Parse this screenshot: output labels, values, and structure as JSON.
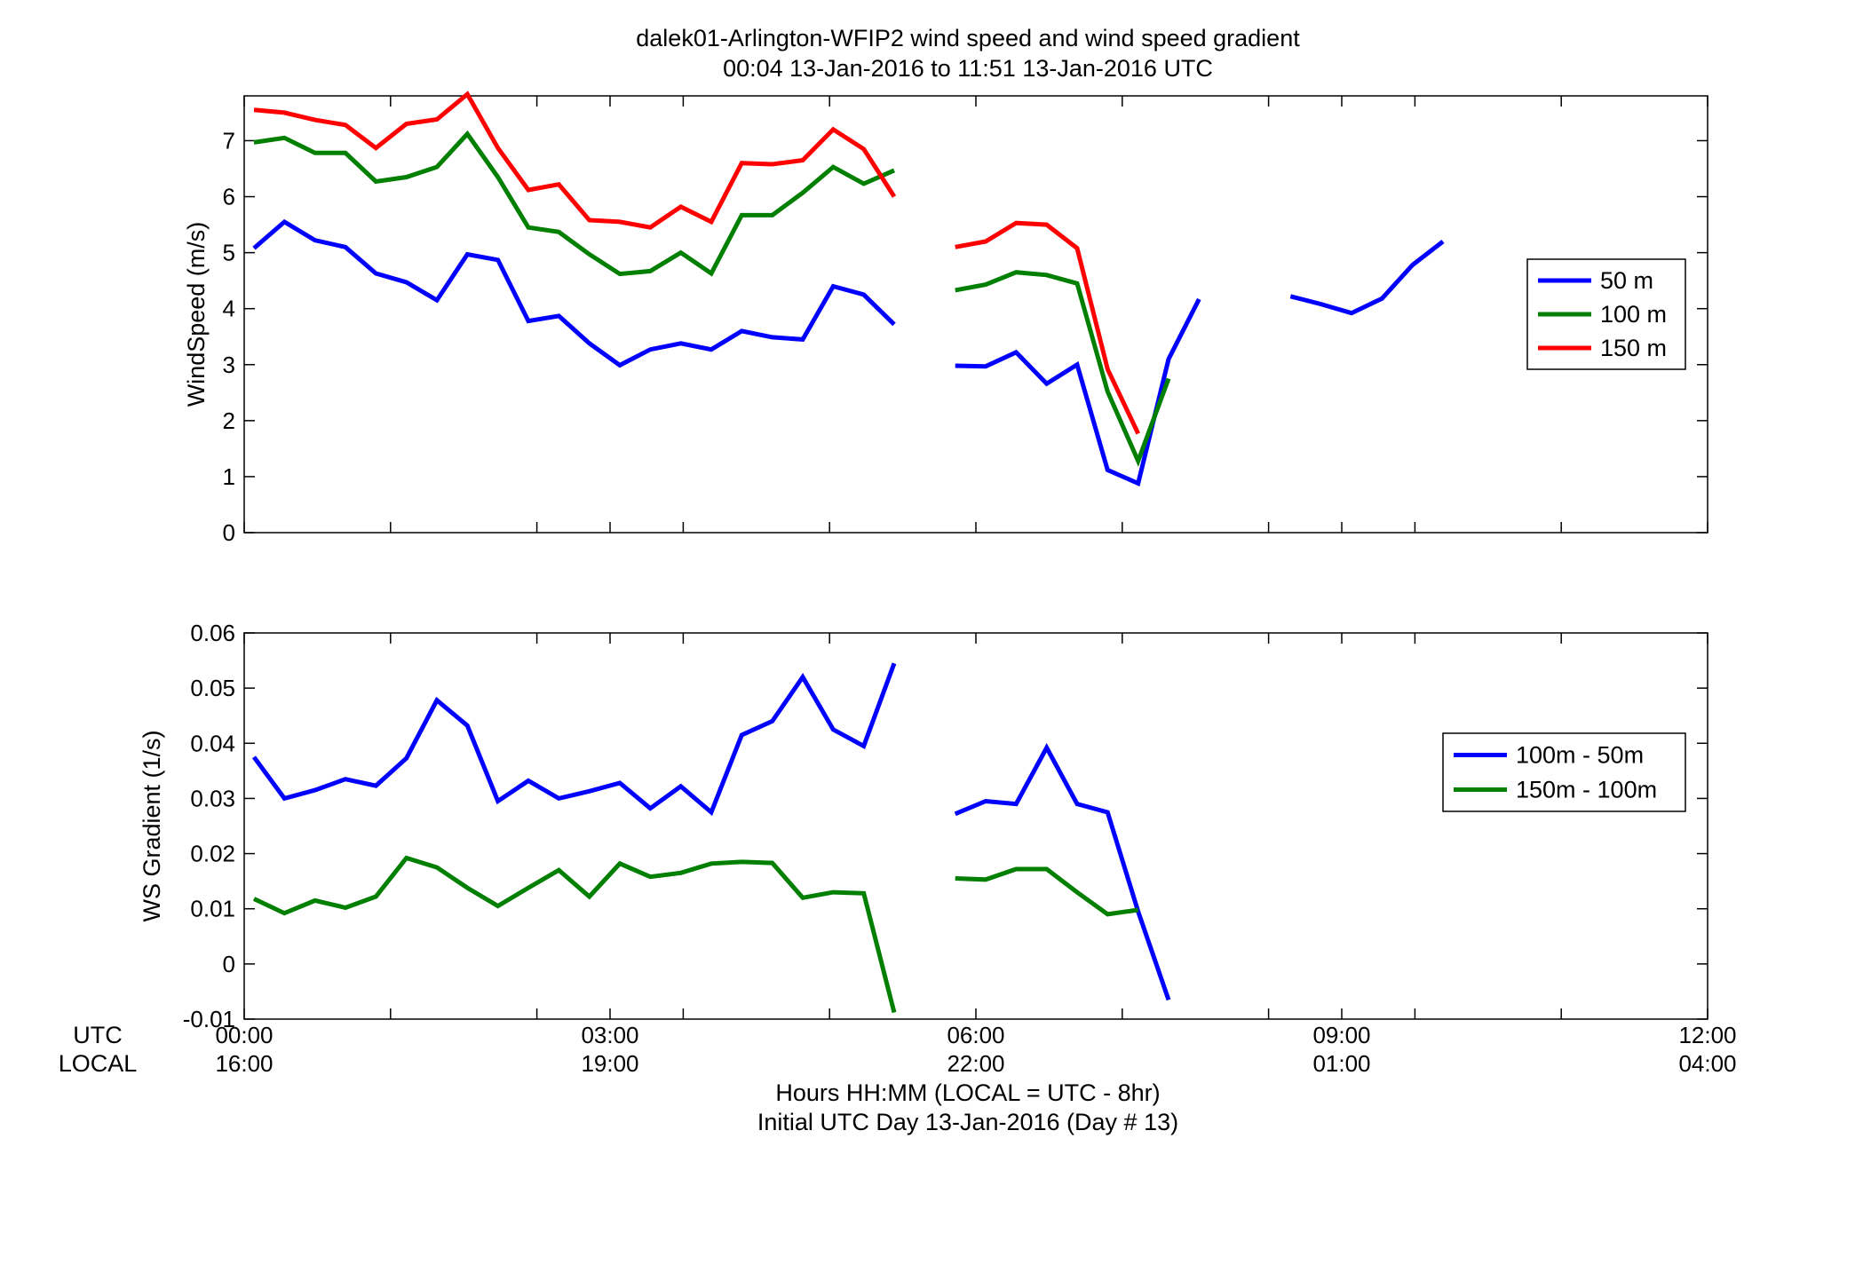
{
  "title_line1": "dalek01-Arlington-WFIP2  wind speed and wind speed gradient",
  "title_line2": "00:04 13-Jan-2016 to 11:51 13-Jan-2016  UTC",
  "x_row_label_utc": "UTC",
  "x_row_label_local": "LOCAL",
  "x_ticks_utc": [
    "00:00",
    "03:00",
    "06:00",
    "09:00",
    "12:00"
  ],
  "x_ticks_local": [
    "16:00",
    "19:00",
    "22:00",
    "01:00",
    "04:00"
  ],
  "xlabel_line1": "Hours HH:MM  (LOCAL = UTC - 8hr)",
  "xlabel_line2": "Initial UTC Day 13-Jan-2016 (Day # 13)",
  "chart_data": [
    {
      "type": "line",
      "ylabel": "WindSpeed (m/s)",
      "xlim": [
        0,
        12
      ],
      "ylim": [
        0,
        7.8
      ],
      "yticks": [
        0,
        1,
        2,
        3,
        4,
        5,
        6,
        7
      ],
      "xticks_hours": [
        0,
        1.2,
        2.4,
        3,
        3.6,
        4.8,
        6,
        7.2,
        8.4,
        9,
        9.6,
        10.8,
        12
      ],
      "legend_position": "right",
      "series": [
        {
          "name": "50 m",
          "color": "#0000ff",
          "segments": [
            [
              [
                0.08,
                5.08
              ],
              [
                0.33,
                5.55
              ],
              [
                0.58,
                5.22
              ],
              [
                0.83,
                5.1
              ],
              [
                1.08,
                4.63
              ],
              [
                1.33,
                4.47
              ],
              [
                1.58,
                4.15
              ],
              [
                1.83,
                4.97
              ],
              [
                2.08,
                4.87
              ],
              [
                2.33,
                3.78
              ],
              [
                2.58,
                3.87
              ],
              [
                2.83,
                3.38
              ],
              [
                3.08,
                2.99
              ],
              [
                3.33,
                3.27
              ],
              [
                3.58,
                3.38
              ],
              [
                3.83,
                3.27
              ],
              [
                4.08,
                3.6
              ],
              [
                4.33,
                3.49
              ],
              [
                4.58,
                3.45
              ],
              [
                4.83,
                4.4
              ],
              [
                5.08,
                4.25
              ],
              [
                5.33,
                3.72
              ]
            ],
            [
              [
                5.83,
                2.98
              ],
              [
                6.08,
                2.97
              ],
              [
                6.33,
                3.22
              ],
              [
                6.58,
                2.66
              ],
              [
                6.83,
                3.0
              ],
              [
                7.08,
                1.12
              ],
              [
                7.33,
                0.88
              ],
              [
                7.58,
                3.1
              ],
              [
                7.83,
                4.17
              ]
            ],
            [
              [
                8.58,
                4.22
              ],
              [
                8.83,
                4.08
              ],
              [
                9.08,
                3.92
              ],
              [
                9.33,
                4.18
              ],
              [
                9.58,
                4.78
              ],
              [
                9.83,
                5.2
              ]
            ]
          ]
        },
        {
          "name": "100 m",
          "color": "#007f00",
          "segments": [
            [
              [
                0.08,
                6.97
              ],
              [
                0.33,
                7.05
              ],
              [
                0.58,
                6.78
              ],
              [
                0.83,
                6.78
              ],
              [
                1.08,
                6.27
              ],
              [
                1.33,
                6.35
              ],
              [
                1.58,
                6.53
              ],
              [
                1.83,
                7.12
              ],
              [
                2.08,
                6.35
              ],
              [
                2.33,
                5.45
              ],
              [
                2.58,
                5.37
              ],
              [
                2.83,
                4.97
              ],
              [
                3.08,
                4.62
              ],
              [
                3.33,
                4.67
              ],
              [
                3.58,
                5.0
              ],
              [
                3.83,
                4.63
              ],
              [
                4.08,
                5.67
              ],
              [
                4.33,
                5.67
              ],
              [
                4.58,
                6.07
              ],
              [
                4.83,
                6.53
              ],
              [
                5.08,
                6.23
              ],
              [
                5.33,
                6.47
              ]
            ],
            [
              [
                5.83,
                4.33
              ],
              [
                6.08,
                4.43
              ],
              [
                6.33,
                4.65
              ],
              [
                6.58,
                4.6
              ],
              [
                6.83,
                4.45
              ],
              [
                7.08,
                2.52
              ],
              [
                7.33,
                1.28
              ],
              [
                7.58,
                2.75
              ]
            ]
          ]
        },
        {
          "name": "150 m",
          "color": "#ff0000",
          "segments": [
            [
              [
                0.08,
                7.55
              ],
              [
                0.33,
                7.5
              ],
              [
                0.58,
                7.37
              ],
              [
                0.83,
                7.28
              ],
              [
                1.08,
                6.87
              ],
              [
                1.33,
                7.3
              ],
              [
                1.58,
                7.38
              ],
              [
                1.83,
                7.83
              ],
              [
                2.08,
                6.87
              ],
              [
                2.33,
                6.12
              ],
              [
                2.58,
                6.22
              ],
              [
                2.83,
                5.58
              ],
              [
                3.08,
                5.55
              ],
              [
                3.33,
                5.45
              ],
              [
                3.58,
                5.82
              ],
              [
                3.83,
                5.55
              ],
              [
                4.08,
                6.6
              ],
              [
                4.33,
                6.58
              ],
              [
                4.58,
                6.65
              ],
              [
                4.83,
                7.2
              ],
              [
                5.08,
                6.85
              ],
              [
                5.33,
                6.0
              ]
            ],
            [
              [
                5.83,
                5.1
              ],
              [
                6.08,
                5.2
              ],
              [
                6.33,
                5.53
              ],
              [
                6.58,
                5.5
              ],
              [
                6.83,
                5.08
              ],
              [
                7.08,
                2.92
              ],
              [
                7.33,
                1.77
              ]
            ]
          ]
        }
      ]
    },
    {
      "type": "line",
      "ylabel": "WS Gradient (1/s)",
      "xlim": [
        0,
        12
      ],
      "ylim": [
        -0.01,
        0.06
      ],
      "yticks": [
        -0.01,
        0,
        0.01,
        0.02,
        0.03,
        0.04,
        0.05,
        0.06
      ],
      "ytick_labels": [
        "-0.01",
        "0",
        "0.01",
        "0.02",
        "0.03",
        "0.04",
        "0.05",
        "0.06"
      ],
      "xticks_hours": [
        0,
        1.2,
        2.4,
        3,
        3.6,
        4.8,
        6,
        7.2,
        8.4,
        9,
        9.6,
        10.8,
        12
      ],
      "legend_position": "right",
      "series": [
        {
          "name": "100m - 50m",
          "color": "#0000ff",
          "segments": [
            [
              [
                0.08,
                0.0375
              ],
              [
                0.33,
                0.03
              ],
              [
                0.58,
                0.0315
              ],
              [
                0.83,
                0.0335
              ],
              [
                1.08,
                0.0323
              ],
              [
                1.33,
                0.0373
              ],
              [
                1.58,
                0.0478
              ],
              [
                1.83,
                0.0432
              ],
              [
                2.08,
                0.0295
              ],
              [
                2.33,
                0.0332
              ],
              [
                2.58,
                0.03
              ],
              [
                2.83,
                0.0313
              ],
              [
                3.08,
                0.0328
              ],
              [
                3.33,
                0.0282
              ],
              [
                3.58,
                0.0322
              ],
              [
                3.83,
                0.0275
              ],
              [
                4.08,
                0.0415
              ],
              [
                4.33,
                0.044
              ],
              [
                4.58,
                0.052
              ],
              [
                4.83,
                0.0425
              ],
              [
                5.08,
                0.0395
              ],
              [
                5.33,
                0.0545
              ]
            ],
            [
              [
                5.83,
                0.0272
              ],
              [
                6.08,
                0.0295
              ],
              [
                6.33,
                0.029
              ],
              [
                6.58,
                0.0392
              ],
              [
                6.83,
                0.029
              ],
              [
                7.08,
                0.0275
              ],
              [
                7.33,
                0.0095
              ],
              [
                7.58,
                -0.0065
              ]
            ]
          ]
        },
        {
          "name": "150m - 100m",
          "color": "#007f00",
          "segments": [
            [
              [
                0.08,
                0.0118
              ],
              [
                0.33,
                0.0092
              ],
              [
                0.58,
                0.0115
              ],
              [
                0.83,
                0.0102
              ],
              [
                1.08,
                0.0122
              ],
              [
                1.33,
                0.0192
              ],
              [
                1.58,
                0.0175
              ],
              [
                1.83,
                0.0138
              ],
              [
                2.08,
                0.0105
              ],
              [
                2.33,
                0.0138
              ],
              [
                2.58,
                0.017
              ],
              [
                2.83,
                0.0122
              ],
              [
                3.08,
                0.0182
              ],
              [
                3.33,
                0.0158
              ],
              [
                3.58,
                0.0165
              ],
              [
                3.83,
                0.0182
              ],
              [
                4.08,
                0.0185
              ],
              [
                4.33,
                0.0183
              ],
              [
                4.58,
                0.012
              ],
              [
                4.83,
                0.013
              ],
              [
                5.08,
                0.0128
              ],
              [
                5.33,
                -0.0088
              ]
            ],
            [
              [
                5.83,
                0.0155
              ],
              [
                6.08,
                0.0153
              ],
              [
                6.33,
                0.0172
              ],
              [
                6.58,
                0.0172
              ],
              [
                6.83,
                0.013
              ],
              [
                7.08,
                0.009
              ],
              [
                7.33,
                0.0098
              ]
            ]
          ]
        }
      ]
    }
  ]
}
